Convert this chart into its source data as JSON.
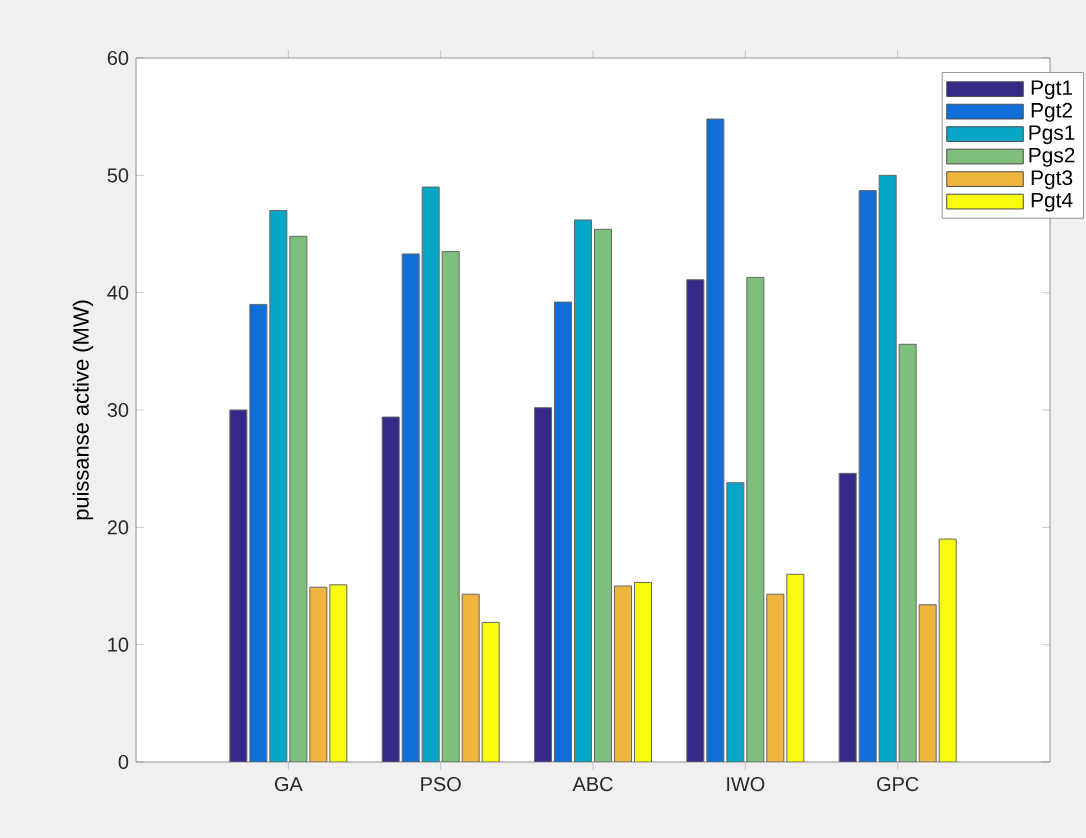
{
  "chart_data": {
    "type": "bar",
    "ylabel": "puissanse active (MW)",
    "categories": [
      "GA",
      "PSO",
      "ABC",
      "IWO",
      "GPC"
    ],
    "series": [
      {
        "name": "Pgt1",
        "color": "#352a87",
        "values": [
          30.0,
          29.4,
          30.2,
          41.1,
          24.6
        ]
      },
      {
        "name": "Pgt2",
        "color": "#0f6ed8",
        "values": [
          39.0,
          43.3,
          39.2,
          54.8,
          48.7
        ]
      },
      {
        "name": "Pgs1",
        "color": "#06a7c6",
        "values": [
          47.0,
          49.0,
          46.2,
          23.8,
          50.0
        ]
      },
      {
        "name": "Pgs2",
        "color": "#7dbf7b",
        "values": [
          44.8,
          43.5,
          45.4,
          41.3,
          35.6
        ]
      },
      {
        "name": "Pgt3",
        "color": "#f0b53f",
        "values": [
          14.9,
          14.3,
          15.0,
          14.3,
          13.4
        ]
      },
      {
        "name": "Pgt4",
        "color": "#f9fb0e",
        "values": [
          15.1,
          11.9,
          15.3,
          16.0,
          19.0
        ]
      }
    ],
    "ylim": [
      0,
      60
    ],
    "yticks": [
      0,
      10,
      20,
      30,
      40,
      50,
      60
    ],
    "grid": false,
    "legend": "top right"
  }
}
